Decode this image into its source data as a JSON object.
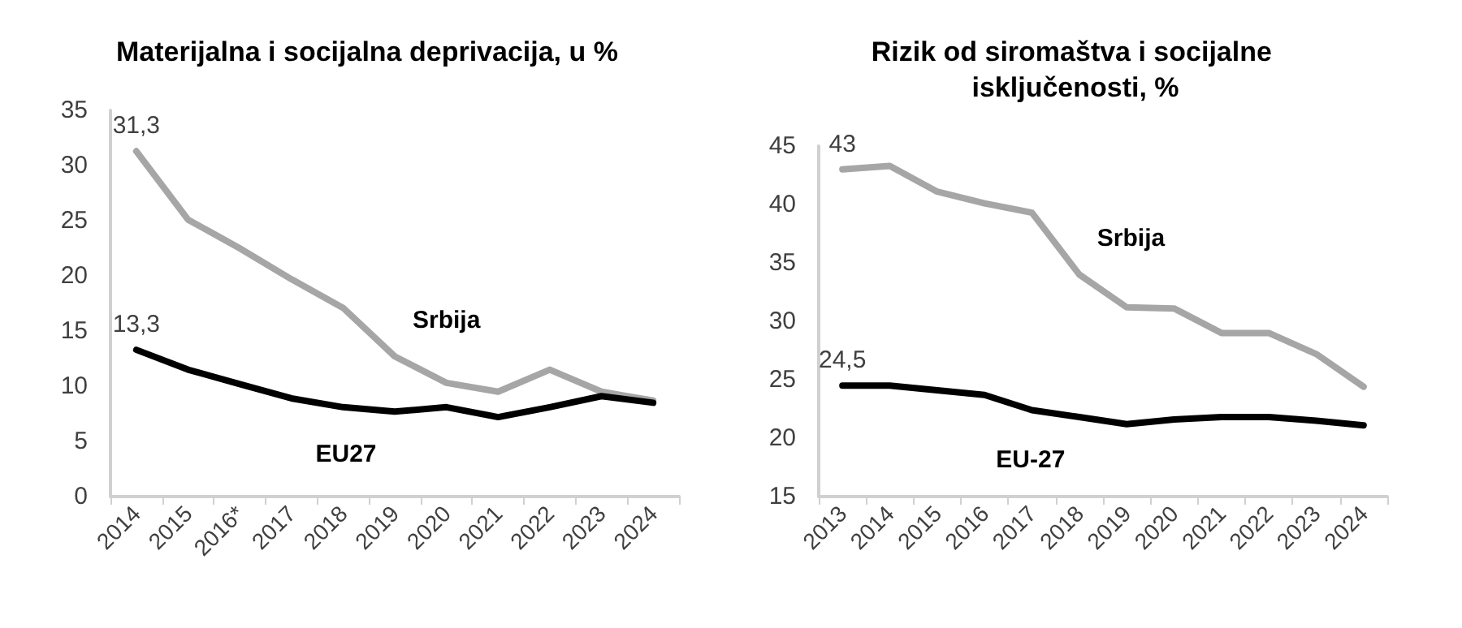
{
  "chart_data": [
    {
      "type": "line",
      "title": "Materijalna i socijalna deprivacija, u %",
      "categories": [
        "2014",
        "2015",
        "2016*",
        "2017",
        "2018",
        "2019",
        "2020",
        "2021",
        "2022",
        "2023",
        "2024"
      ],
      "series": [
        {
          "name": "Srbija",
          "color": "#a6a6a6",
          "values": [
            31.3,
            25.1,
            22.5,
            19.7,
            17.1,
            12.7,
            10.3,
            9.5,
            11.5,
            9.5,
            8.7
          ],
          "value_labels": [
            "31,3",
            null,
            null,
            null,
            null,
            null,
            null,
            null,
            null,
            null,
            null
          ]
        },
        {
          "name": "EU27",
          "color": "#000000",
          "values": [
            13.3,
            11.5,
            10.2,
            8.9,
            8.1,
            7.7,
            8.1,
            7.2,
            8.1,
            9.1,
            8.5
          ],
          "value_labels": [
            "13,3",
            null,
            null,
            null,
            null,
            null,
            null,
            null,
            null,
            null,
            null
          ]
        }
      ],
      "ylim": [
        0,
        35
      ],
      "yticks": [
        0,
        5,
        10,
        15,
        20,
        25,
        30,
        35
      ],
      "grid": false,
      "marker": "none",
      "line_style": "solid"
    },
    {
      "type": "line",
      "title": "Rizik od siromaštva i socijalne isključenosti, %",
      "categories": [
        "2013",
        "2014",
        "2015",
        "2016",
        "2017",
        "2018",
        "2019",
        "2020",
        "2021",
        "2022",
        "2023",
        "2024"
      ],
      "series": [
        {
          "name": "Srbija",
          "color": "#a6a6a6",
          "values": [
            43.0,
            43.3,
            41.1,
            40.1,
            39.3,
            34.0,
            31.2,
            31.1,
            29.0,
            29.0,
            27.2,
            24.4
          ],
          "value_labels": [
            "43",
            null,
            null,
            null,
            null,
            null,
            null,
            null,
            null,
            null,
            null,
            null
          ]
        },
        {
          "name": "EU-27",
          "color": "#000000",
          "values": [
            24.5,
            24.5,
            24.1,
            23.7,
            22.4,
            21.8,
            21.2,
            21.6,
            21.8,
            21.8,
            21.5,
            21.1
          ],
          "value_labels": [
            "24,5",
            null,
            null,
            null,
            null,
            null,
            null,
            null,
            null,
            null,
            null,
            null
          ]
        }
      ],
      "ylim": [
        15,
        45
      ],
      "yticks": [
        15,
        20,
        25,
        30,
        35,
        40,
        45
      ],
      "grid": false,
      "marker": "none",
      "line_style": "solid"
    }
  ]
}
